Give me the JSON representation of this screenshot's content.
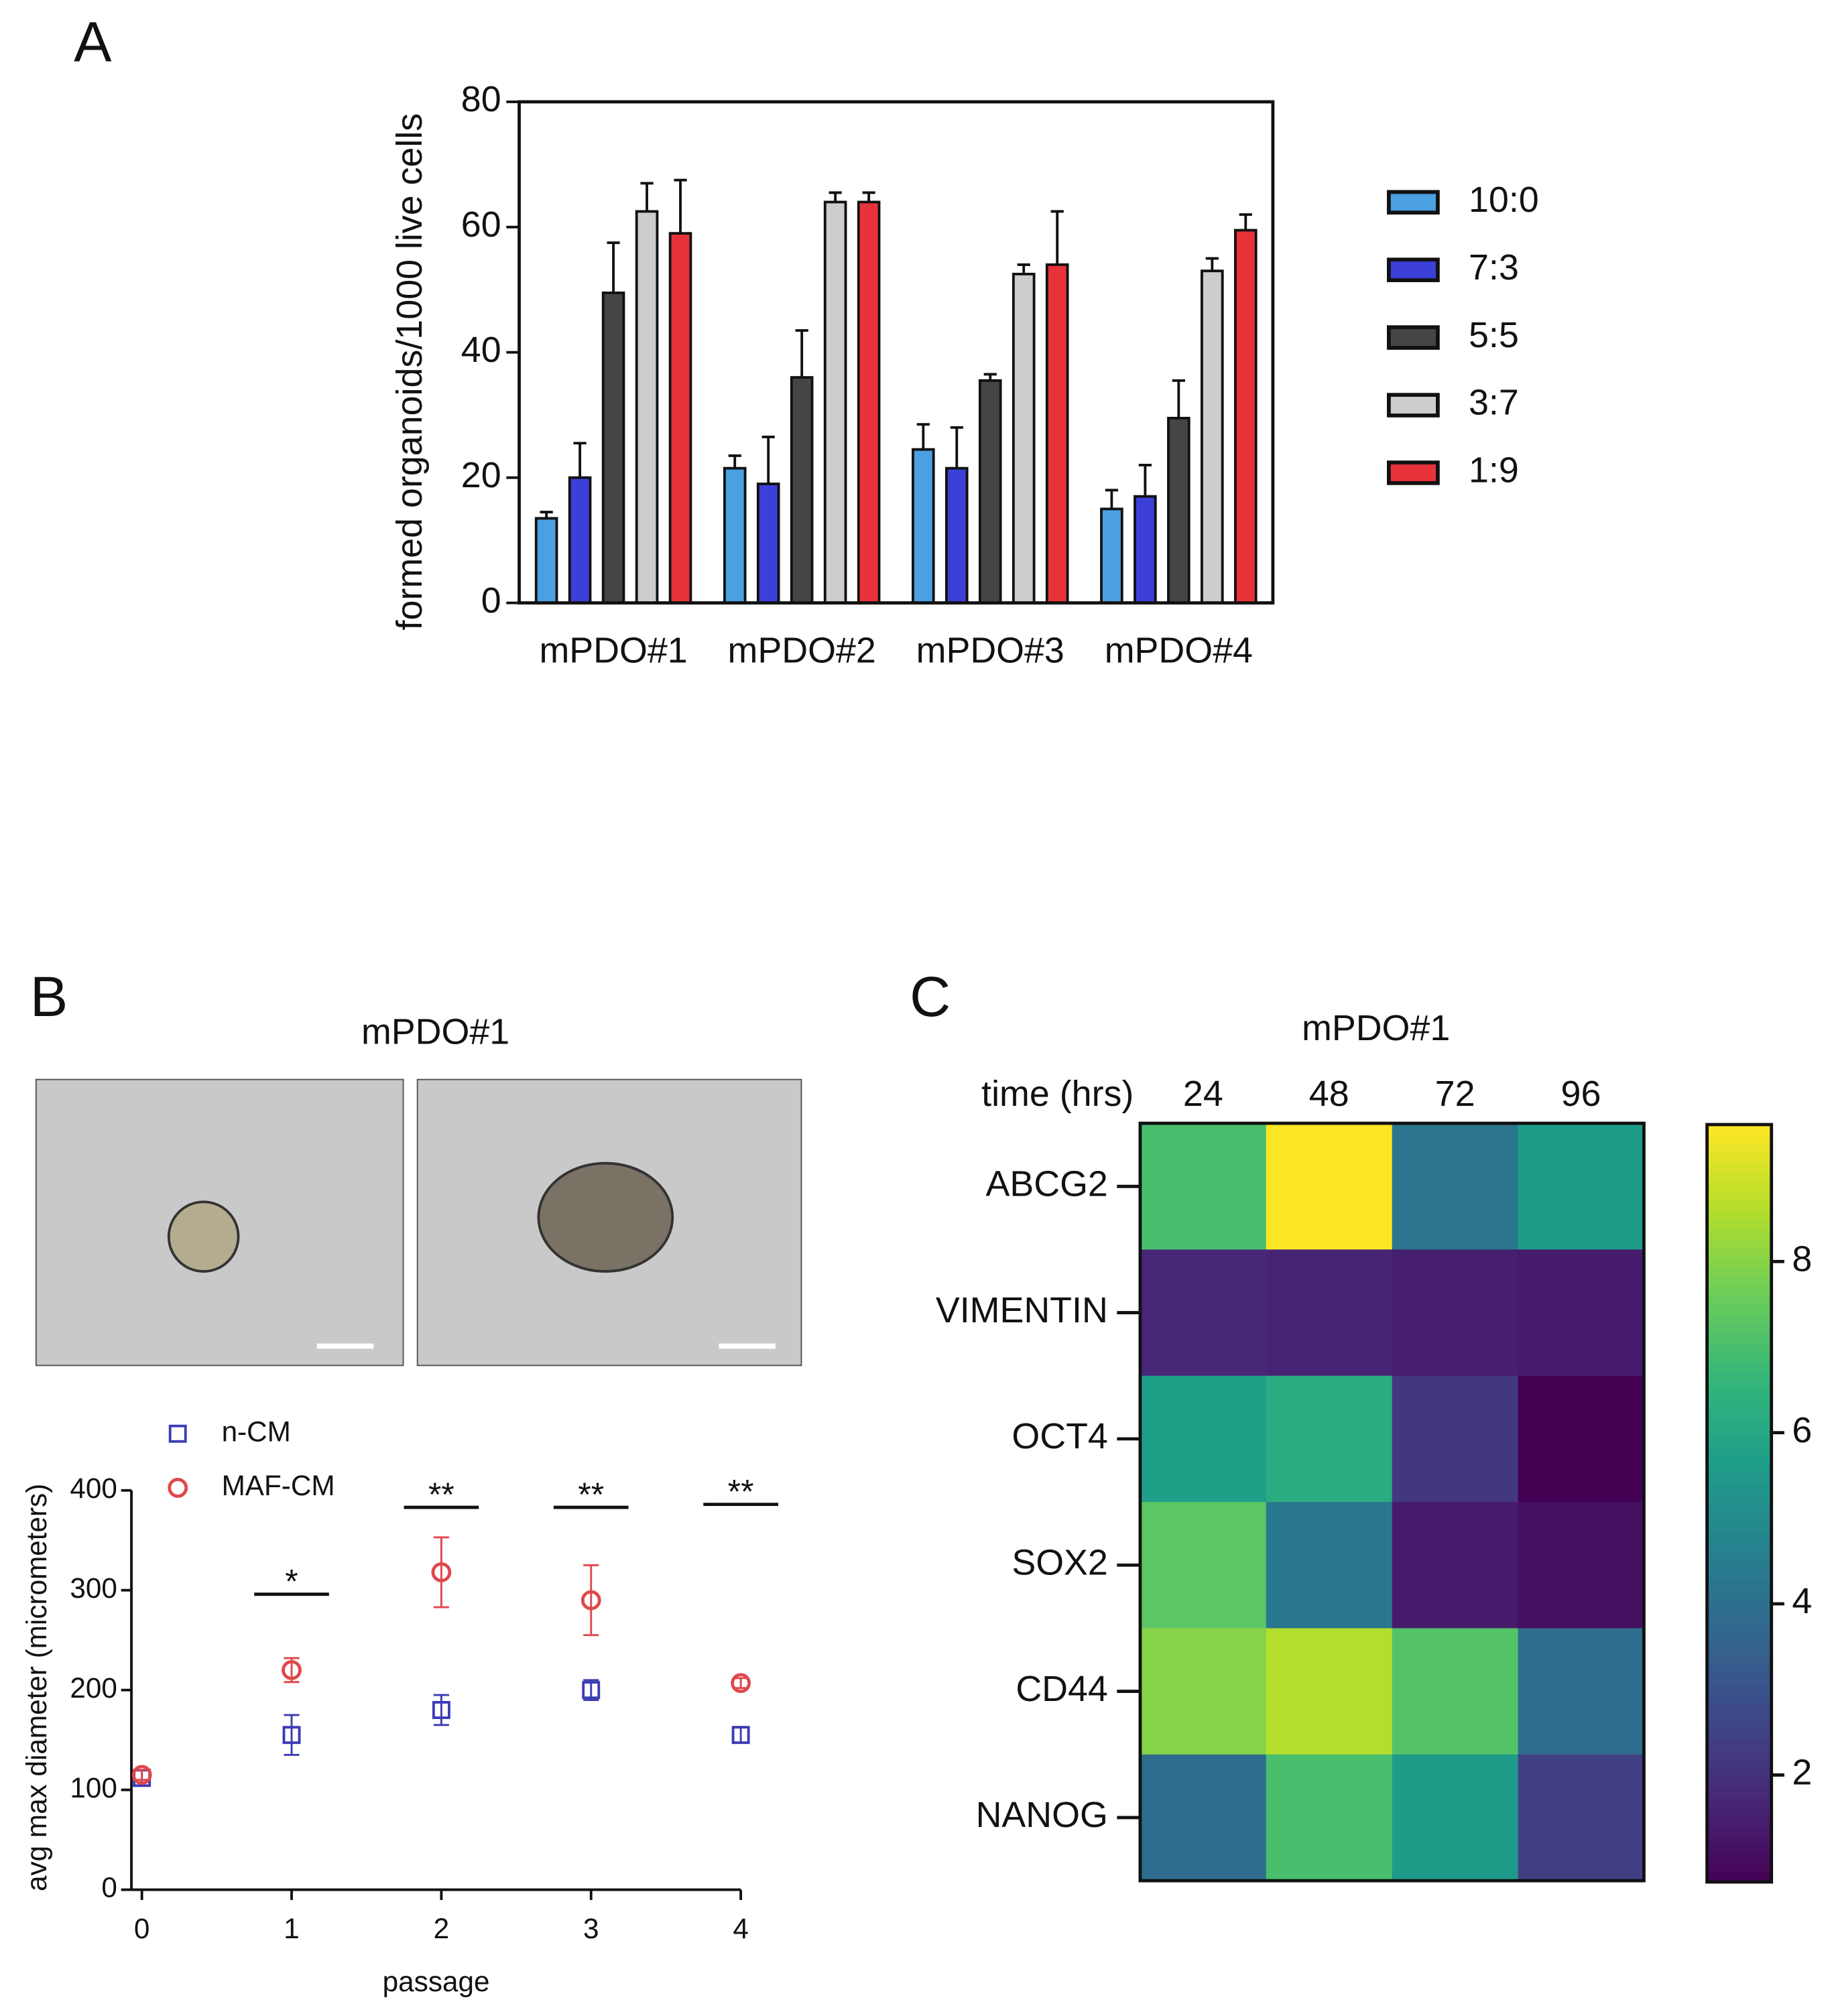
{
  "chart_data": [
    {
      "type": "bar",
      "panel_label": "A",
      "ylabel": "formed organoids/1000 live cells",
      "categories": [
        "mPDO#1",
        "mPDO#2",
        "mPDO#3",
        "mPDO#4"
      ],
      "series": [
        {
          "name": "10:0",
          "color": "#4aa0e0",
          "values": [
            13.5,
            21.5,
            24.5,
            15
          ],
          "errors": [
            1,
            2,
            4,
            3
          ]
        },
        {
          "name": "7:3",
          "color": "#3c3fd8",
          "values": [
            20,
            19,
            21.5,
            17
          ],
          "errors": [
            5.5,
            7.5,
            6.5,
            5
          ]
        },
        {
          "name": "5:5",
          "color": "#454545",
          "values": [
            49.5,
            36,
            35.5,
            29.5
          ],
          "errors": [
            8,
            7.5,
            1,
            6
          ]
        },
        {
          "name": "3:7",
          "color": "#cdcdcd",
          "values": [
            62.5,
            64,
            52.5,
            53
          ],
          "errors": [
            4.5,
            1.5,
            1.5,
            2
          ]
        },
        {
          "name": "1:9",
          "color": "#e8323a",
          "values": [
            59,
            64,
            54,
            59.5
          ],
          "errors": [
            8.5,
            1.5,
            8.5,
            2.5
          ]
        }
      ],
      "ylim": [
        0,
        80
      ],
      "yticks": [
        0,
        20,
        40,
        60,
        80
      ],
      "legend": "right"
    },
    {
      "type": "scatter",
      "panel_label": "B",
      "title": "mPDO#1",
      "xlabel": "passage",
      "ylabel": "avg max diameter (micrometers)",
      "x": [
        0,
        1,
        2,
        3,
        4
      ],
      "series": [
        {
          "name": "n-CM",
          "color": "#3b3bb5",
          "marker": "square",
          "values": [
            112,
            155,
            180,
            200,
            155
          ],
          "errors": [
            8,
            20,
            15,
            10,
            8
          ]
        },
        {
          "name": "MAF-CM",
          "color": "#e0474c",
          "marker": "circle",
          "values": [
            115,
            220,
            318,
            290,
            207
          ],
          "errors": [
            5,
            12,
            35,
            35,
            5
          ]
        }
      ],
      "annotations": [
        {
          "x": 1,
          "y": 296,
          "text": "*"
        },
        {
          "x": 2,
          "y": 383,
          "text": "**"
        },
        {
          "x": 3,
          "y": 383,
          "text": "**"
        },
        {
          "x": 4,
          "y": 386,
          "text": "**"
        }
      ],
      "xlim": [
        -0.07,
        4
      ],
      "xticks": [
        0,
        1,
        2,
        3,
        4
      ],
      "ylim": [
        0,
        400
      ],
      "yticks": [
        0,
        100,
        200,
        300,
        400
      ],
      "legend": "upper left"
    },
    {
      "type": "heatmap",
      "panel_label": "C",
      "title": "mPDO#1",
      "xlabel": "time (hrs)",
      "categories": [
        "24",
        "48",
        "72",
        "96"
      ],
      "rows": [
        "ABCG2",
        "VIMENTIN",
        "OCT4",
        "SOX2",
        "CD44",
        "NANOG"
      ],
      "values": [
        [
          7.0,
          9.6,
          4.2,
          5.6
        ],
        [
          1.7,
          1.6,
          1.5,
          1.4
        ],
        [
          5.7,
          6.2,
          2.2,
          0.75
        ],
        [
          7.3,
          4.3,
          1.4,
          1.1
        ],
        [
          8.0,
          8.6,
          7.2,
          3.9
        ],
        [
          3.9,
          7.0,
          5.6,
          2.4
        ]
      ],
      "colormap": "viridis",
      "zlim": [
        0.75,
        9.6
      ],
      "zticks": [
        2,
        4,
        6,
        8
      ]
    }
  ]
}
